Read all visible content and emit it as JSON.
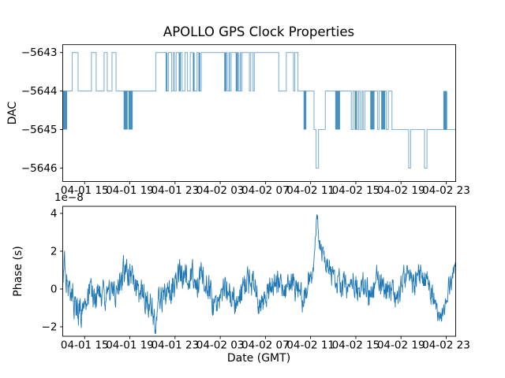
{
  "title": "APOLLO GPS Clock Properties",
  "x_axis": {
    "label": "Date (GMT)",
    "range_hours": [
      13.06,
      47.84
    ],
    "tick_hours": [
      15,
      19,
      23,
      27,
      31,
      35,
      39,
      43,
      47
    ],
    "tick_labels": [
      "04-01 15",
      "04-01 19",
      "04-01 23",
      "04-02 03",
      "04-02 07",
      "04-02 11",
      "04-02 15",
      "04-02 19",
      "04-02 23"
    ]
  },
  "colors": {
    "line": "#1f77b4",
    "step_line": "rgba(31,119,180,0.55)",
    "burst_fill": "rgba(31,119,180,0.82)",
    "frame": "#000000"
  },
  "chart_data": [
    {
      "type": "step",
      "title": "APOLLO GPS Clock Properties",
      "ylabel": "DAC",
      "ylim": [
        -5646.35,
        -5642.795
      ],
      "yticks": [
        -5643,
        -5644,
        -5645,
        -5646
      ],
      "ytick_labels": [
        "−5643",
        "−5644",
        "−5645",
        "−5646"
      ],
      "x_unit": "hours GMT since 04-01 00:00",
      "steps": [
        [
          13.06,
          -5644
        ],
        [
          13.9,
          -5643
        ],
        [
          14.42,
          -5644
        ],
        [
          15.6,
          -5643
        ],
        [
          16.02,
          -5644
        ],
        [
          16.72,
          -5643
        ],
        [
          17.0,
          -5644
        ],
        [
          17.42,
          -5643
        ],
        [
          17.78,
          -5644
        ],
        [
          21.3,
          -5643
        ],
        [
          22.2,
          -5644
        ],
        [
          22.42,
          -5643
        ],
        [
          22.7,
          -5644
        ],
        [
          22.85,
          -5643
        ],
        [
          22.95,
          -5644
        ],
        [
          23.1,
          -5643
        ],
        [
          23.35,
          -5644
        ],
        [
          23.47,
          -5643
        ],
        [
          23.62,
          -5644
        ],
        [
          23.88,
          -5643
        ],
        [
          24.1,
          -5644
        ],
        [
          24.35,
          -5643
        ],
        [
          24.6,
          -5644
        ],
        [
          24.95,
          -5643
        ],
        [
          25.1,
          -5644
        ],
        [
          25.32,
          -5643
        ],
        [
          27.38,
          -5644
        ],
        [
          27.52,
          -5643
        ],
        [
          27.62,
          -5644
        ],
        [
          27.78,
          -5643
        ],
        [
          27.85,
          -5644
        ],
        [
          27.97,
          -5643
        ],
        [
          28.4,
          -5644
        ],
        [
          28.55,
          -5643
        ],
        [
          28.62,
          -5644
        ],
        [
          28.76,
          -5643
        ],
        [
          28.82,
          -5644
        ],
        [
          28.93,
          -5643
        ],
        [
          29.58,
          -5644
        ],
        [
          29.7,
          -5643
        ],
        [
          29.9,
          -5644
        ],
        [
          30.02,
          -5643
        ],
        [
          32.18,
          -5644
        ],
        [
          32.85,
          -5643
        ],
        [
          33.48,
          -5644
        ],
        [
          33.6,
          -5643
        ],
        [
          33.88,
          -5644
        ],
        [
          35.3,
          -5645
        ],
        [
          35.48,
          -5646
        ],
        [
          35.7,
          -5645
        ],
        [
          36.3,
          -5644
        ],
        [
          38.6,
          -5645
        ],
        [
          38.75,
          -5644
        ],
        [
          38.92,
          -5645
        ],
        [
          39.02,
          -5644
        ],
        [
          39.12,
          -5645
        ],
        [
          39.25,
          -5644
        ],
        [
          39.38,
          -5645
        ],
        [
          39.55,
          -5644
        ],
        [
          39.65,
          -5645
        ],
        [
          39.8,
          -5644
        ],
        [
          40.92,
          -5645
        ],
        [
          41.06,
          -5644
        ],
        [
          41.7,
          -5645
        ],
        [
          41.88,
          -5644
        ],
        [
          42.2,
          -5645
        ],
        [
          43.68,
          -5646
        ],
        [
          43.85,
          -5645
        ],
        [
          45.08,
          -5646
        ],
        [
          45.3,
          -5645
        ],
        [
          47.84,
          -5645
        ]
      ],
      "bursts": [
        [
          13.06,
          13.45,
          -5645,
          -5644
        ],
        [
          18.45,
          18.8,
          -5645,
          -5644
        ],
        [
          18.88,
          19.25,
          -5645,
          -5644
        ],
        [
          22.22,
          22.3,
          -5644,
          -5643
        ],
        [
          23.38,
          23.44,
          -5644,
          -5643
        ],
        [
          24.62,
          24.72,
          -5644,
          -5643
        ],
        [
          25.12,
          25.2,
          -5644,
          -5643
        ],
        [
          27.4,
          27.5,
          -5644,
          -5643
        ],
        [
          28.42,
          28.52,
          -5644,
          -5643
        ],
        [
          34.38,
          34.62,
          -5645,
          -5644
        ],
        [
          37.18,
          37.6,
          -5645,
          -5644
        ],
        [
          38.95,
          39.0,
          -5645,
          -5644
        ],
        [
          40.28,
          40.65,
          -5645,
          -5644
        ],
        [
          41.25,
          41.6,
          -5645,
          -5644
        ],
        [
          46.75,
          47.08,
          -5645,
          -5644
        ]
      ]
    },
    {
      "type": "line",
      "ylabel": "Phase (s)",
      "offset_text": "1e−8",
      "ylim": [
        -2.5,
        4.375
      ],
      "yticks": [
        4,
        2,
        0,
        -2
      ],
      "ytick_labels": [
        "4",
        "2",
        "0",
        "−2"
      ],
      "units_multiplier": "1e-8",
      "n_points": 1100,
      "seed": 982451653,
      "noise_gain": 1.4,
      "trend": [
        [
          13.06,
          0.3
        ],
        [
          13.25,
          1.3
        ],
        [
          13.5,
          0.2
        ],
        [
          13.9,
          -0.4
        ],
        [
          14.3,
          -1.1
        ],
        [
          14.7,
          -1.2
        ],
        [
          15.1,
          -0.4
        ],
        [
          15.5,
          0.2
        ],
        [
          15.8,
          -0.5
        ],
        [
          16.5,
          -0.3
        ],
        [
          17.2,
          -0.35
        ],
        [
          17.8,
          -0.2
        ],
        [
          18.2,
          0.5
        ],
        [
          18.55,
          0.9
        ],
        [
          19.0,
          0.6
        ],
        [
          19.4,
          0.1
        ],
        [
          20.0,
          -0.3
        ],
        [
          20.6,
          -0.4
        ],
        [
          21.1,
          -1.2
        ],
        [
          21.25,
          -1.6
        ],
        [
          21.5,
          -0.6
        ],
        [
          22.0,
          -0.4
        ],
        [
          22.6,
          -0.2
        ],
        [
          23.2,
          0.5
        ],
        [
          23.6,
          0.9
        ],
        [
          24.0,
          0.8
        ],
        [
          24.5,
          0.6
        ],
        [
          25.0,
          0.4
        ],
        [
          25.5,
          0.8
        ],
        [
          25.9,
          0.5
        ],
        [
          26.3,
          -0.7
        ],
        [
          26.6,
          -0.9
        ],
        [
          27.0,
          -0.3
        ],
        [
          27.5,
          -0.2
        ],
        [
          28.0,
          -0.4
        ],
        [
          28.5,
          -0.8
        ],
        [
          29.0,
          -0.1
        ],
        [
          29.4,
          0.3
        ],
        [
          29.9,
          0.2
        ],
        [
          30.4,
          -0.6
        ],
        [
          30.7,
          -0.9
        ],
        [
          31.1,
          -0.2
        ],
        [
          31.6,
          0.2
        ],
        [
          32.2,
          0.3
        ],
        [
          32.8,
          0.1
        ],
        [
          33.4,
          0.25
        ],
        [
          34.0,
          -0.2
        ],
        [
          34.4,
          -0.6
        ],
        [
          34.8,
          0.3
        ],
        [
          35.1,
          0.6
        ],
        [
          35.35,
          1.5
        ],
        [
          35.55,
          4.25
        ],
        [
          35.75,
          2.6
        ],
        [
          36.0,
          1.9
        ],
        [
          36.3,
          1.6
        ],
        [
          36.7,
          0.9
        ],
        [
          37.2,
          0.5
        ],
        [
          37.8,
          0.2
        ],
        [
          38.3,
          -0.1
        ],
        [
          38.8,
          0.3
        ],
        [
          39.3,
          -0.3
        ],
        [
          39.8,
          0.1
        ],
        [
          40.3,
          -0.3
        ],
        [
          40.8,
          0.4
        ],
        [
          41.2,
          0.4
        ],
        [
          41.6,
          -0.4
        ],
        [
          42.0,
          0.1
        ],
        [
          42.5,
          -0.5
        ],
        [
          43.0,
          0.2
        ],
        [
          43.4,
          0.7
        ],
        [
          43.8,
          0.6
        ],
        [
          44.2,
          0.3
        ],
        [
          44.6,
          0.7
        ],
        [
          45.0,
          0.6
        ],
        [
          45.4,
          0.2
        ],
        [
          45.8,
          -0.3
        ],
        [
          46.1,
          -1.1
        ],
        [
          46.4,
          -1.5
        ],
        [
          46.7,
          -1.3
        ],
        [
          47.0,
          -0.6
        ],
        [
          47.3,
          0.2
        ],
        [
          47.6,
          0.7
        ],
        [
          47.84,
          0.6
        ]
      ],
      "noise_amp": [
        [
          13.06,
          0.45
        ],
        [
          14.0,
          0.5
        ],
        [
          16.0,
          0.45
        ],
        [
          18.5,
          0.5
        ],
        [
          21.0,
          0.5
        ],
        [
          23.5,
          0.5
        ],
        [
          26.0,
          0.5
        ],
        [
          29.0,
          0.5
        ],
        [
          32.0,
          0.45
        ],
        [
          34.8,
          0.5
        ],
        [
          35.5,
          0.25
        ],
        [
          36.2,
          0.3
        ],
        [
          37.0,
          0.45
        ],
        [
          40.0,
          0.5
        ],
        [
          43.0,
          0.45
        ],
        [
          45.5,
          0.4
        ],
        [
          46.3,
          0.35
        ],
        [
          47.84,
          0.4
        ]
      ]
    }
  ]
}
